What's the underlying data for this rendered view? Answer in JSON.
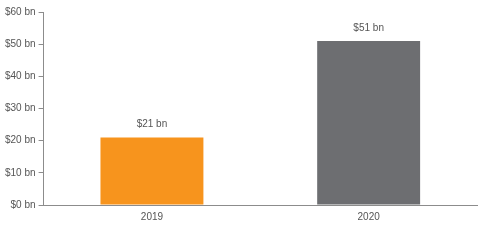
{
  "chart_data": {
    "type": "bar",
    "categories": [
      "2019",
      "2020"
    ],
    "values": [
      21,
      51
    ],
    "value_labels": [
      "$21 bn",
      "$51 bn"
    ],
    "colors": [
      "#f7941d",
      "#6d6e71"
    ],
    "ylim": [
      0,
      60
    ],
    "yticks": [
      {
        "value": 0,
        "label": "$0 bn"
      },
      {
        "value": 10,
        "label": "$10 bn"
      },
      {
        "value": 20,
        "label": "$20 bn"
      },
      {
        "value": 30,
        "label": "$30 bn"
      },
      {
        "value": 40,
        "label": "$40 bn"
      },
      {
        "value": 50,
        "label": "$50 bn"
      },
      {
        "value": 60,
        "label": "$60 bn"
      }
    ],
    "grid": false,
    "data_labels": true
  }
}
